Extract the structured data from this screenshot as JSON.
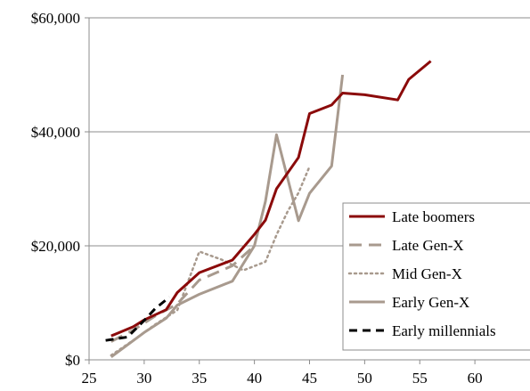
{
  "chart_data": {
    "type": "line",
    "title": "",
    "xlabel": "",
    "ylabel": "",
    "xlim": [
      25,
      65
    ],
    "ylim": [
      0,
      60000
    ],
    "x_ticks": [
      25,
      30,
      35,
      40,
      45,
      50,
      55,
      60
    ],
    "y_ticks": [
      0,
      20000,
      40000,
      60000
    ],
    "y_tick_labels": [
      "$0",
      "$20,000",
      "$40,000",
      "$60,000"
    ],
    "grid": "horizontal",
    "legend_position": "right",
    "series": [
      {
        "name": "Late boomers",
        "color": "#8b0a0a",
        "dash": "solid",
        "x": [
          27,
          29,
          30,
          32,
          33,
          35,
          38,
          40,
          41,
          42,
          44,
          45,
          47,
          48,
          50,
          53,
          54,
          56
        ],
        "y": [
          4200,
          5800,
          7000,
          8800,
          11800,
          15300,
          17500,
          22000,
          24500,
          30000,
          35500,
          43200,
          44700,
          46800,
          46500,
          45600,
          49200,
          52400
        ]
      },
      {
        "name": "Late Gen-X",
        "color": "#a89a8e",
        "dash": "long",
        "x": [
          27,
          29,
          31,
          33,
          35,
          38,
          40
        ],
        "y": [
          3200,
          5200,
          7700,
          9800,
          14000,
          16500,
          20000
        ]
      },
      {
        "name": "Mid Gen-X",
        "color": "#a89a8e",
        "dash": "dotted",
        "x": [
          27,
          29,
          31,
          33,
          35,
          37,
          39,
          41,
          42,
          43,
          44,
          45
        ],
        "y": [
          800,
          3400,
          6200,
          8700,
          19000,
          17600,
          15700,
          17200,
          21900,
          26000,
          29300,
          33900
        ]
      },
      {
        "name": "Early Gen-X",
        "color": "#a89a8e",
        "dash": "solid",
        "x": [
          27,
          30,
          32,
          33,
          35,
          38,
          40,
          41,
          42,
          44,
          45,
          47,
          48
        ],
        "y": [
          500,
          4800,
          7300,
          9600,
          11500,
          13800,
          20000,
          27800,
          39500,
          24400,
          29200,
          34000,
          50000
        ]
      },
      {
        "name": "Early millennials",
        "color": "#000000",
        "dash": "dashed",
        "x": [
          26.5,
          28.5,
          30,
          31,
          32.3
        ],
        "y": [
          3400,
          4000,
          6900,
          9000,
          11000
        ]
      }
    ]
  }
}
